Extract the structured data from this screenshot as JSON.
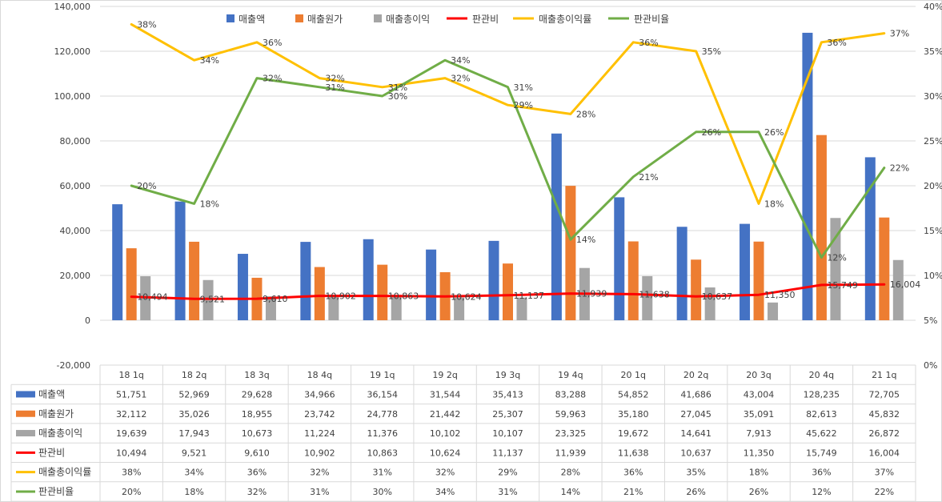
{
  "chart_data": {
    "type": "bar",
    "categories": [
      "18 1q",
      "18 2q",
      "18 3q",
      "18 4q",
      "19 1q",
      "19 2q",
      "19 3q",
      "19 4q",
      "20 1q",
      "20 2q",
      "20 3q",
      "20 4q",
      "21 1q"
    ],
    "y_left": {
      "min": -20000,
      "max": 140000,
      "ticks": [
        "-20,000",
        "0",
        "20,000",
        "40,000",
        "60,000",
        "80,000",
        "100,000",
        "120,000",
        "140,000"
      ]
    },
    "y_right": {
      "min": 0,
      "max": 0.4,
      "ticks": [
        "0%",
        "5%",
        "10%",
        "15%",
        "20%",
        "25%",
        "30%",
        "35%",
        "40%"
      ]
    },
    "grid": true,
    "legend_position": "top",
    "series": [
      {
        "name": "매출액",
        "kind": "bar",
        "axis": "left",
        "color": "#4472C4",
        "values": [
          51751,
          52969,
          29628,
          34966,
          36154,
          31544,
          35413,
          83288,
          54852,
          41686,
          43004,
          128235,
          72705
        ],
        "table": [
          "51,751",
          "52,969",
          "29,628",
          "34,966",
          "36,154",
          "31,544",
          "35,413",
          "83,288",
          "54,852",
          "41,686",
          "43,004",
          "128,235",
          "72,705"
        ]
      },
      {
        "name": "매출원가",
        "kind": "bar",
        "axis": "left",
        "color": "#ED7D31",
        "values": [
          32112,
          35026,
          18955,
          23742,
          24778,
          21442,
          25307,
          59963,
          35180,
          27045,
          35091,
          82613,
          45832
        ],
        "table": [
          "32,112",
          "35,026",
          "18,955",
          "23,742",
          "24,778",
          "21,442",
          "25,307",
          "59,963",
          "35,180",
          "27,045",
          "35,091",
          "82,613",
          "45,832"
        ]
      },
      {
        "name": "매출총이익",
        "kind": "bar",
        "axis": "left",
        "color": "#A5A5A5",
        "values": [
          19639,
          17943,
          10673,
          11224,
          11376,
          10102,
          10107,
          23325,
          19672,
          14641,
          7913,
          45622,
          26872
        ],
        "table": [
          "19,639",
          "17,943",
          "10,673",
          "11,224",
          "11,376",
          "10,102",
          "10,107",
          "23,325",
          "19,672",
          "14,641",
          "7,913",
          "45,622",
          "26,872"
        ]
      },
      {
        "name": "판관비",
        "kind": "line",
        "axis": "left",
        "color": "#FF0000",
        "values": [
          10494,
          9521,
          9610,
          10902,
          10863,
          10624,
          11137,
          11939,
          11638,
          10637,
          11350,
          15749,
          16004
        ],
        "table": [
          "10,494",
          "9,521",
          "9,610",
          "10,902",
          "10,863",
          "10,624",
          "11,137",
          "11,939",
          "11,638",
          "10,637",
          "11,350",
          "15,749",
          "16,004"
        ]
      },
      {
        "name": "매출총이익률",
        "kind": "line",
        "axis": "right",
        "color": "#FFC000",
        "values": [
          0.38,
          0.34,
          0.36,
          0.32,
          0.31,
          0.32,
          0.29,
          0.28,
          0.36,
          0.35,
          0.18,
          0.36,
          0.37
        ],
        "table": [
          "38%",
          "34%",
          "36%",
          "32%",
          "31%",
          "32%",
          "29%",
          "28%",
          "36%",
          "35%",
          "18%",
          "36%",
          "37%"
        ]
      },
      {
        "name": "판관비율",
        "kind": "line",
        "axis": "right",
        "color": "#70AD47",
        "values": [
          0.2,
          0.18,
          0.32,
          0.31,
          0.3,
          0.34,
          0.31,
          0.14,
          0.21,
          0.26,
          0.26,
          0.12,
          0.22
        ],
        "table": [
          "20%",
          "18%",
          "32%",
          "31%",
          "30%",
          "34%",
          "31%",
          "14%",
          "21%",
          "26%",
          "26%",
          "12%",
          "22%"
        ]
      }
    ]
  }
}
